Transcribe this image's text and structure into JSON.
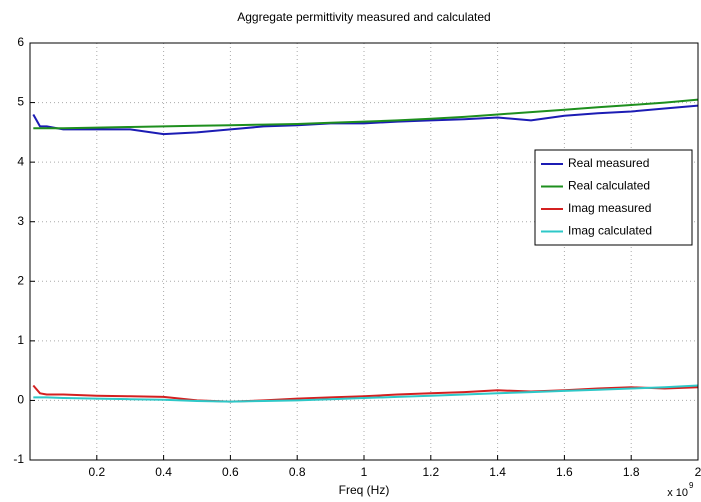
{
  "chart_data": {
    "type": "line",
    "title": "Aggregate permittivity measured and calculated",
    "x_label": "Freq (Hz)",
    "x_scale_label": "x 10",
    "x_scale_exponent": "9",
    "x": [
      0.01,
      0.03,
      0.05,
      0.1,
      0.2,
      0.3,
      0.4,
      0.5,
      0.6,
      0.7,
      0.8,
      0.9,
      1.0,
      1.1,
      1.2,
      1.3,
      1.4,
      1.5,
      1.6,
      1.7,
      1.8,
      1.9,
      2.0
    ],
    "series": [
      {
        "name": "Real measured",
        "color": "#1c1cb4",
        "values": [
          4.8,
          4.6,
          4.6,
          4.55,
          4.55,
          4.55,
          4.47,
          4.5,
          4.55,
          4.6,
          4.62,
          4.65,
          4.65,
          4.68,
          4.7,
          4.72,
          4.75,
          4.7,
          4.78,
          4.82,
          4.85,
          4.9,
          4.95
        ]
      },
      {
        "name": "Real calculated",
        "color": "#1e8f1e",
        "values": [
          4.57,
          4.57,
          4.57,
          4.57,
          4.58,
          4.59,
          4.6,
          4.61,
          4.62,
          4.63,
          4.64,
          4.66,
          4.68,
          4.7,
          4.73,
          4.76,
          4.8,
          4.84,
          4.88,
          4.92,
          4.96,
          5.0,
          5.05
        ]
      },
      {
        "name": "Imag measured",
        "color": "#d42020",
        "values": [
          0.25,
          0.12,
          0.1,
          0.1,
          0.08,
          0.07,
          0.06,
          0.0,
          -0.02,
          0.0,
          0.03,
          0.05,
          0.07,
          0.1,
          0.12,
          0.14,
          0.17,
          0.15,
          0.17,
          0.2,
          0.22,
          0.2,
          0.22
        ]
      },
      {
        "name": "Imag calculated",
        "color": "#2ec8c8",
        "values": [
          0.05,
          0.05,
          0.05,
          0.04,
          0.03,
          0.02,
          0.01,
          -0.01,
          -0.02,
          -0.01,
          0.0,
          0.02,
          0.04,
          0.06,
          0.08,
          0.1,
          0.12,
          0.14,
          0.16,
          0.18,
          0.2,
          0.22,
          0.25
        ]
      }
    ],
    "xlim": [
      0,
      2
    ],
    "xticks": [
      0.2,
      0.4,
      0.6,
      0.8,
      1,
      1.2,
      1.4,
      1.6,
      1.8,
      2
    ],
    "ylim": [
      -1,
      6
    ],
    "yticks": [
      -1,
      0,
      1,
      2,
      3,
      4,
      5,
      6
    ],
    "grid": true,
    "legend_position": "east"
  }
}
